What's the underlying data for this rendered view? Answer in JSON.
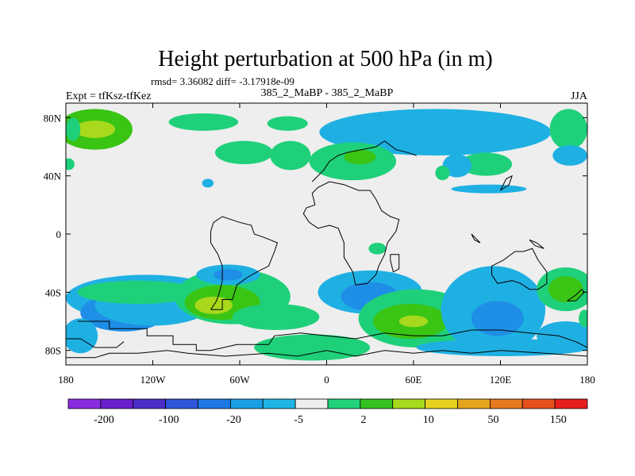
{
  "chart_data": {
    "type": "heatmap",
    "title": "Height perturbation at 500 hPa (in m)",
    "stats_text": "rmsd= 3.36082 diff= -3.17918e-09",
    "experiment_label": "Expt = tfKsz-tfKez",
    "center_label": "385_2_MaBP - 385_2_MaBP",
    "season_label": "JJA",
    "x_range": [
      -180,
      180
    ],
    "y_range": [
      -90,
      90
    ],
    "x_ticks": [
      {
        "value": -180,
        "label": "180"
      },
      {
        "value": -120,
        "label": "120W"
      },
      {
        "value": -60,
        "label": "60W"
      },
      {
        "value": 0,
        "label": "0"
      },
      {
        "value": 60,
        "label": "60E"
      },
      {
        "value": 120,
        "label": "120E"
      },
      {
        "value": 180,
        "label": "180"
      }
    ],
    "y_ticks": [
      {
        "value": 80,
        "label": "80N"
      },
      {
        "value": 40,
        "label": "40N"
      },
      {
        "value": 0,
        "label": "0"
      },
      {
        "value": -40,
        "label": "40S"
      },
      {
        "value": -80,
        "label": "80S"
      }
    ],
    "colorbar": {
      "colors": [
        "#8a2be2",
        "#6a1fcf",
        "#4b2ec8",
        "#2f55d9",
        "#1e78e6",
        "#1a9fe6",
        "#20b4e6",
        "#eeeeee",
        "#20d27a",
        "#33c21e",
        "#a7d91c",
        "#e6d21e",
        "#e6a51e",
        "#e6781e",
        "#e6501e",
        "#e61e1e"
      ],
      "labels": [
        {
          "after_index": 1,
          "text": "-200"
        },
        {
          "after_index": 3,
          "text": "-100"
        },
        {
          "after_index": 5,
          "text": "-20"
        },
        {
          "after_index": 7,
          "text": "-5"
        },
        {
          "after_index": 9,
          "text": "2"
        },
        {
          "after_index": 11,
          "text": "10"
        },
        {
          "after_index": 13,
          "text": "50"
        },
        {
          "after_index": 15,
          "text": "150"
        }
      ]
    },
    "blobs": [
      {
        "lon": -160,
        "lat": 72,
        "rlon": 26,
        "rlat": 14,
        "level": 10
      },
      {
        "lon": -160,
        "lat": 72,
        "rlon": 14,
        "rlat": 6,
        "level": 20
      },
      {
        "lon": -178,
        "lat": 48,
        "rlon": 4,
        "rlat": 4,
        "level": 2
      },
      {
        "lon": -85,
        "lat": 77,
        "rlon": 24,
        "rlat": 6,
        "level": 2
      },
      {
        "lon": -57,
        "lat": 56,
        "rlon": 20,
        "rlat": 8,
        "level": 2
      },
      {
        "lon": -25,
        "lat": 54,
        "rlon": 14,
        "rlat": 10,
        "level": 2
      },
      {
        "lon": -27,
        "lat": 76,
        "rlon": 14,
        "rlat": 5,
        "level": 2
      },
      {
        "lon": -82,
        "lat": 35,
        "rlon": 4,
        "rlat": 3,
        "level": -5
      },
      {
        "lon": 75,
        "lat": 70,
        "rlon": 80,
        "rlat": 16,
        "level": -5
      },
      {
        "lon": 18,
        "lat": 50,
        "rlon": 30,
        "rlat": 13,
        "level": 2
      },
      {
        "lon": 23,
        "lat": 53,
        "rlon": 11,
        "rlat": 5,
        "level": 10
      },
      {
        "lon": 110,
        "lat": 48,
        "rlon": 18,
        "rlat": 8,
        "level": 2
      },
      {
        "lon": 90,
        "lat": 47,
        "rlon": 10,
        "rlat": 8,
        "level": -5
      },
      {
        "lon": 80,
        "lat": 42,
        "rlon": 5,
        "rlat": 5,
        "level": 2
      },
      {
        "lon": 112,
        "lat": 31,
        "rlon": 26,
        "rlat": 3,
        "level": -5
      },
      {
        "lon": 167,
        "lat": 72,
        "rlon": 13,
        "rlat": 14,
        "level": 2
      },
      {
        "lon": 168,
        "lat": 54,
        "rlon": 12,
        "rlat": 7,
        "level": -5
      },
      {
        "lon": -175,
        "lat": 72,
        "rlon": 5,
        "rlat": 8,
        "level": 2
      },
      {
        "lon": -125,
        "lat": -44,
        "rlon": 55,
        "rlat": 16,
        "level": -5
      },
      {
        "lon": -140,
        "lat": -54,
        "rlon": 30,
        "rlat": 13,
        "level": -20
      },
      {
        "lon": -120,
        "lat": -49,
        "rlon": 40,
        "rlat": 14,
        "level": -5
      },
      {
        "lon": -130,
        "lat": -40,
        "rlon": 42,
        "rlat": 8,
        "level": 2
      },
      {
        "lon": -65,
        "lat": -43,
        "rlon": 40,
        "rlat": 19,
        "level": 2
      },
      {
        "lon": -72,
        "lat": -47,
        "rlon": 26,
        "rlat": 12,
        "level": 10
      },
      {
        "lon": -78,
        "lat": -49,
        "rlon": 13,
        "rlat": 6,
        "level": 20
      },
      {
        "lon": -68,
        "lat": -28,
        "rlon": 22,
        "rlat": 7,
        "level": -5
      },
      {
        "lon": -68,
        "lat": -28,
        "rlon": 10,
        "rlat": 4,
        "level": -20
      },
      {
        "lon": -35,
        "lat": -57,
        "rlon": 30,
        "rlat": 9,
        "level": 2
      },
      {
        "lon": 30,
        "lat": -40,
        "rlon": 36,
        "rlat": 15,
        "level": -5
      },
      {
        "lon": 30,
        "lat": -43,
        "rlon": 20,
        "rlat": 10,
        "level": -20
      },
      {
        "lon": 35,
        "lat": -10,
        "rlon": 6,
        "rlat": 4,
        "level": 2
      },
      {
        "lon": 62,
        "lat": -58,
        "rlon": 40,
        "rlat": 20,
        "level": 2
      },
      {
        "lon": 58,
        "lat": -60,
        "rlon": 26,
        "rlat": 12,
        "level": 10
      },
      {
        "lon": 60,
        "lat": -60,
        "rlon": 10,
        "rlat": 4,
        "level": 20
      },
      {
        "lon": 115,
        "lat": -52,
        "rlon": 36,
        "rlat": 30,
        "level": -5
      },
      {
        "lon": 118,
        "lat": -58,
        "rlon": 18,
        "rlat": 12,
        "level": -20
      },
      {
        "lon": 122,
        "lat": -78,
        "rlon": 60,
        "rlat": 6,
        "level": -5
      },
      {
        "lon": 165,
        "lat": -38,
        "rlon": 20,
        "rlat": 15,
        "level": 2
      },
      {
        "lon": 165,
        "lat": -38,
        "rlon": 12,
        "rlat": 9,
        "level": 10
      },
      {
        "lon": 165,
        "lat": -70,
        "rlon": 20,
        "rlat": 10,
        "level": -5
      },
      {
        "lon": 178,
        "lat": -58,
        "rlon": 4,
        "rlat": 6,
        "level": 2
      },
      {
        "lon": -10,
        "lat": -78,
        "rlon": 40,
        "rlat": 9,
        "level": 2
      },
      {
        "lon": -170,
        "lat": -70,
        "rlon": 12,
        "rlat": 12,
        "level": -5
      }
    ],
    "outlines": [
      [
        [
          -172,
          -60
        ],
        [
          -150,
          -60
        ],
        [
          -150,
          -65
        ],
        [
          -124,
          -65
        ],
        [
          -124,
          -70
        ],
        [
          -106,
          -70
        ],
        [
          -106,
          -76
        ],
        [
          -90,
          -76
        ],
        [
          -90,
          -80
        ],
        [
          -80,
          -80
        ],
        [
          -62,
          -76
        ],
        [
          -40,
          -76
        ],
        [
          -36,
          -70
        ],
        [
          -18,
          -68
        ],
        [
          0,
          -70
        ],
        [
          20,
          -72
        ],
        [
          40,
          -68
        ],
        [
          60,
          -70
        ],
        [
          80,
          -70
        ],
        [
          100,
          -66
        ],
        [
          120,
          -66
        ],
        [
          140,
          -68
        ],
        [
          160,
          -70
        ],
        [
          172,
          -74
        ],
        [
          180,
          -78
        ]
      ],
      [
        [
          -180,
          -85
        ],
        [
          -160,
          -85
        ],
        [
          -150,
          -82
        ],
        [
          -130,
          -82
        ],
        [
          -110,
          -80
        ],
        [
          -96,
          -82
        ],
        [
          -70,
          -84
        ],
        [
          -40,
          -82
        ],
        [
          -20,
          -84
        ],
        [
          0,
          -80
        ],
        [
          20,
          -84
        ],
        [
          40,
          -80
        ],
        [
          60,
          -82
        ],
        [
          80,
          -80
        ],
        [
          100,
          -82
        ],
        [
          120,
          -80
        ],
        [
          150,
          -82
        ],
        [
          180,
          -84
        ]
      ],
      [
        [
          -180,
          -72
        ],
        [
          -170,
          -72
        ],
        [
          -160,
          -78
        ],
        [
          -145,
          -78
        ],
        [
          -140,
          -74
        ]
      ],
      [
        [
          -80,
          -52
        ],
        [
          -72,
          -52
        ],
        [
          -72,
          -45
        ],
        [
          -65,
          -45
        ],
        [
          -62,
          -35
        ],
        [
          -55,
          -30
        ],
        [
          -48,
          -26
        ],
        [
          -40,
          -22
        ],
        [
          -36,
          -12
        ],
        [
          -34,
          -6
        ],
        [
          -44,
          -2
        ],
        [
          -50,
          0
        ],
        [
          -52,
          6
        ],
        [
          -60,
          8
        ],
        [
          -66,
          10
        ],
        [
          -72,
          12
        ],
        [
          -78,
          8
        ],
        [
          -80,
          2
        ],
        [
          -80,
          -6
        ],
        [
          -75,
          -14
        ],
        [
          -72,
          -22
        ],
        [
          -72,
          -32
        ],
        [
          -74,
          -40
        ],
        [
          -76,
          -46
        ],
        [
          -80,
          -52
        ]
      ],
      [
        [
          -8,
          20
        ],
        [
          -10,
          28
        ],
        [
          -6,
          32
        ],
        [
          2,
          36
        ],
        [
          12,
          34
        ],
        [
          22,
          30
        ],
        [
          30,
          30
        ],
        [
          34,
          24
        ],
        [
          38,
          16
        ],
        [
          44,
          12
        ],
        [
          50,
          10
        ],
        [
          48,
          2
        ],
        [
          42,
          -6
        ],
        [
          40,
          -14
        ],
        [
          36,
          -22
        ],
        [
          34,
          -28
        ],
        [
          28,
          -34
        ],
        [
          20,
          -35
        ],
        [
          18,
          -26
        ],
        [
          12,
          -16
        ],
        [
          12,
          -6
        ],
        [
          8,
          4
        ],
        [
          2,
          6
        ],
        [
          -6,
          4
        ],
        [
          -12,
          8
        ],
        [
          -16,
          14
        ],
        [
          -14,
          18
        ],
        [
          -8,
          20
        ]
      ],
      [
        [
          44,
          -14
        ],
        [
          50,
          -14
        ],
        [
          50,
          -24
        ],
        [
          46,
          -26
        ],
        [
          44,
          -18
        ],
        [
          44,
          -14
        ]
      ],
      [
        [
          114,
          -22
        ],
        [
          122,
          -18
        ],
        [
          130,
          -12
        ],
        [
          136,
          -12
        ],
        [
          142,
          -10
        ],
        [
          146,
          -18
        ],
        [
          152,
          -26
        ],
        [
          152,
          -34
        ],
        [
          146,
          -38
        ],
        [
          140,
          -38
        ],
        [
          134,
          -34
        ],
        [
          128,
          -32
        ],
        [
          118,
          -34
        ],
        [
          114,
          -28
        ],
        [
          114,
          -22
        ]
      ],
      [
        [
          -10,
          36
        ],
        [
          -2,
          44
        ],
        [
          2,
          50
        ],
        [
          8,
          54
        ],
        [
          14,
          56
        ],
        [
          24,
          58
        ],
        [
          34,
          60
        ],
        [
          40,
          64
        ],
        [
          48,
          58
        ],
        [
          56,
          56
        ],
        [
          62,
          54
        ]
      ],
      [
        [
          166,
          -46
        ],
        [
          172,
          -42
        ],
        [
          176,
          -38
        ],
        [
          178,
          -40
        ],
        [
          172,
          -46
        ],
        [
          166,
          -46
        ]
      ],
      [
        [
          140,
          -4
        ],
        [
          145,
          -6
        ],
        [
          150,
          -10
        ],
        [
          144,
          -8
        ],
        [
          140,
          -4
        ]
      ],
      [
        [
          100,
          0
        ],
        [
          104,
          -4
        ],
        [
          106,
          -6
        ],
        [
          102,
          -4
        ],
        [
          100,
          0
        ]
      ],
      [
        [
          120,
          30
        ],
        [
          124,
          38
        ],
        [
          128,
          40
        ],
        [
          126,
          34
        ],
        [
          120,
          30
        ]
      ]
    ]
  }
}
